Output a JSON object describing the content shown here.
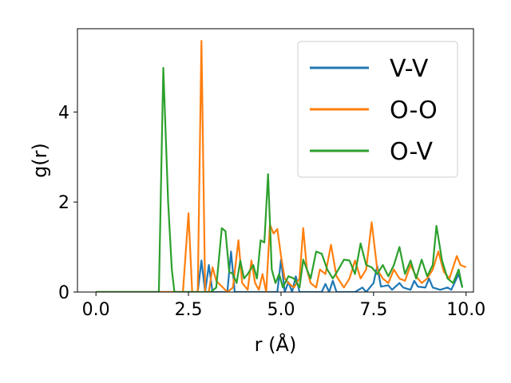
{
  "chart_data": {
    "type": "line",
    "xlabel": "r (Å)",
    "ylabel": "g(r)",
    "xlim": [
      -0.5,
      10.2
    ],
    "ylim": [
      0,
      5.85
    ],
    "xticks": [
      0.0,
      2.5,
      5.0,
      7.5,
      10.0
    ],
    "xtick_labels": [
      "0.0",
      "2.5",
      "5.0",
      "7.5",
      "10.0"
    ],
    "yticks": [
      0,
      2,
      4
    ],
    "ytick_labels": [
      "0",
      "2",
      "4"
    ],
    "grid": false,
    "legend_position": "top-right",
    "series": [
      {
        "name": "V-V",
        "color": "#1f77b4",
        "points": [
          [
            0,
            0
          ],
          [
            2.0,
            0
          ],
          [
            2.75,
            0
          ],
          [
            2.85,
            0.7
          ],
          [
            2.95,
            0
          ],
          [
            3.05,
            0.6
          ],
          [
            3.15,
            0
          ],
          [
            3.55,
            0
          ],
          [
            3.65,
            0.9
          ],
          [
            3.75,
            0
          ],
          [
            4.9,
            0
          ],
          [
            5.0,
            0.72
          ],
          [
            5.1,
            0
          ],
          [
            5.2,
            0.22
          ],
          [
            5.3,
            0
          ],
          [
            5.4,
            0.35
          ],
          [
            5.5,
            0
          ],
          [
            6.1,
            0
          ],
          [
            6.2,
            0.18
          ],
          [
            6.3,
            0
          ],
          [
            6.4,
            0.25
          ],
          [
            6.5,
            0
          ],
          [
            7.0,
            0
          ],
          [
            7.2,
            0.1
          ],
          [
            7.3,
            0
          ],
          [
            7.5,
            0.2
          ],
          [
            7.6,
            0.58
          ],
          [
            7.7,
            0.12
          ],
          [
            7.9,
            0.15
          ],
          [
            8.0,
            0.05
          ],
          [
            8.2,
            0.2
          ],
          [
            8.3,
            0.1
          ],
          [
            8.5,
            0.05
          ],
          [
            8.6,
            0.25
          ],
          [
            8.7,
            0.12
          ],
          [
            8.9,
            0.1
          ],
          [
            9.0,
            0.3
          ],
          [
            9.1,
            0.1
          ],
          [
            9.3,
            0.05
          ],
          [
            9.5,
            0.1
          ],
          [
            9.6,
            0.05
          ],
          [
            9.8,
            0.4
          ],
          [
            9.9,
            0.1
          ]
        ]
      },
      {
        "name": "O-O",
        "color": "#ff7f0e",
        "points": [
          [
            0,
            0
          ],
          [
            2.35,
            0
          ],
          [
            2.5,
            1.75
          ],
          [
            2.6,
            0
          ],
          [
            2.75,
            0
          ],
          [
            2.85,
            5.58
          ],
          [
            2.95,
            0
          ],
          [
            3.05,
            0
          ],
          [
            3.15,
            0.55
          ],
          [
            3.25,
            0.25
          ],
          [
            3.55,
            0
          ],
          [
            3.7,
            0.1
          ],
          [
            3.85,
            1.15
          ],
          [
            3.95,
            0.2
          ],
          [
            4.1,
            0.05
          ],
          [
            4.2,
            0.7
          ],
          [
            4.3,
            0.2
          ],
          [
            4.4,
            0.05
          ],
          [
            4.5,
            0.4
          ],
          [
            4.6,
            0
          ],
          [
            4.7,
            1.5
          ],
          [
            4.8,
            1.3
          ],
          [
            4.9,
            1.4
          ],
          [
            5.0,
            0.8
          ],
          [
            5.1,
            0.3
          ],
          [
            5.2,
            0.2
          ],
          [
            5.35,
            0.1
          ],
          [
            5.5,
            0.3
          ],
          [
            5.6,
            1.42
          ],
          [
            5.7,
            0.5
          ],
          [
            5.8,
            0.2
          ],
          [
            5.95,
            0.1
          ],
          [
            6.05,
            0.5
          ],
          [
            6.2,
            0.4
          ],
          [
            6.35,
            1.05
          ],
          [
            6.5,
            0.35
          ],
          [
            6.7,
            0.1
          ],
          [
            6.85,
            0.3
          ],
          [
            7.0,
            0.7
          ],
          [
            7.15,
            0.3
          ],
          [
            7.3,
            0.5
          ],
          [
            7.45,
            1.55
          ],
          [
            7.6,
            0.5
          ],
          [
            7.75,
            0.3
          ],
          [
            7.9,
            0.2
          ],
          [
            8.05,
            0.5
          ],
          [
            8.2,
            0.3
          ],
          [
            8.35,
            0.25
          ],
          [
            8.5,
            0.6
          ],
          [
            8.65,
            0.35
          ],
          [
            8.8,
            0.2
          ],
          [
            8.95,
            0.3
          ],
          [
            9.1,
            0.5
          ],
          [
            9.25,
            0.9
          ],
          [
            9.4,
            0.45
          ],
          [
            9.55,
            0.3
          ],
          [
            9.75,
            0.8
          ],
          [
            9.85,
            0.6
          ],
          [
            10.0,
            0.55
          ]
        ]
      },
      {
        "name": "O-V",
        "color": "#2ca02c",
        "points": [
          [
            0,
            0
          ],
          [
            1.7,
            0
          ],
          [
            1.82,
            4.98
          ],
          [
            1.95,
            2.0
          ],
          [
            2.05,
            0.5
          ],
          [
            2.12,
            0
          ],
          [
            3.1,
            0
          ],
          [
            3.25,
            0.1
          ],
          [
            3.4,
            1.42
          ],
          [
            3.5,
            1.35
          ],
          [
            3.6,
            0.45
          ],
          [
            3.7,
            0.4
          ],
          [
            3.8,
            0.2
          ],
          [
            3.9,
            0.7
          ],
          [
            4.0,
            0.3
          ],
          [
            4.1,
            0.4
          ],
          [
            4.25,
            0.6
          ],
          [
            4.35,
            0.3
          ],
          [
            4.45,
            1.15
          ],
          [
            4.55,
            1.1
          ],
          [
            4.65,
            2.62
          ],
          [
            4.75,
            0.5
          ],
          [
            4.85,
            0.2
          ],
          [
            4.95,
            0.4
          ],
          [
            5.05,
            0.1
          ],
          [
            5.2,
            0.35
          ],
          [
            5.35,
            0.3
          ],
          [
            5.5,
            0.1
          ],
          [
            5.6,
            0.72
          ],
          [
            5.7,
            0.5
          ],
          [
            5.8,
            0.3
          ],
          [
            5.95,
            0.9
          ],
          [
            6.1,
            0.85
          ],
          [
            6.25,
            0.5
          ],
          [
            6.4,
            0.3
          ],
          [
            6.55,
            0.5
          ],
          [
            6.7,
            0.72
          ],
          [
            6.85,
            0.7
          ],
          [
            7.0,
            0.4
          ],
          [
            7.15,
            1.08
          ],
          [
            7.3,
            0.6
          ],
          [
            7.45,
            0.55
          ],
          [
            7.6,
            0.4
          ],
          [
            7.75,
            0.6
          ],
          [
            7.9,
            0.35
          ],
          [
            8.05,
            0.6
          ],
          [
            8.2,
            1.0
          ],
          [
            8.35,
            0.4
          ],
          [
            8.5,
            0.7
          ],
          [
            8.65,
            0.3
          ],
          [
            8.8,
            0.72
          ],
          [
            8.95,
            0.35
          ],
          [
            9.1,
            0.6
          ],
          [
            9.2,
            1.47
          ],
          [
            9.35,
            0.7
          ],
          [
            9.5,
            0.3
          ],
          [
            9.65,
            0.2
          ],
          [
            9.8,
            0.5
          ],
          [
            9.9,
            0.1
          ]
        ]
      }
    ]
  }
}
